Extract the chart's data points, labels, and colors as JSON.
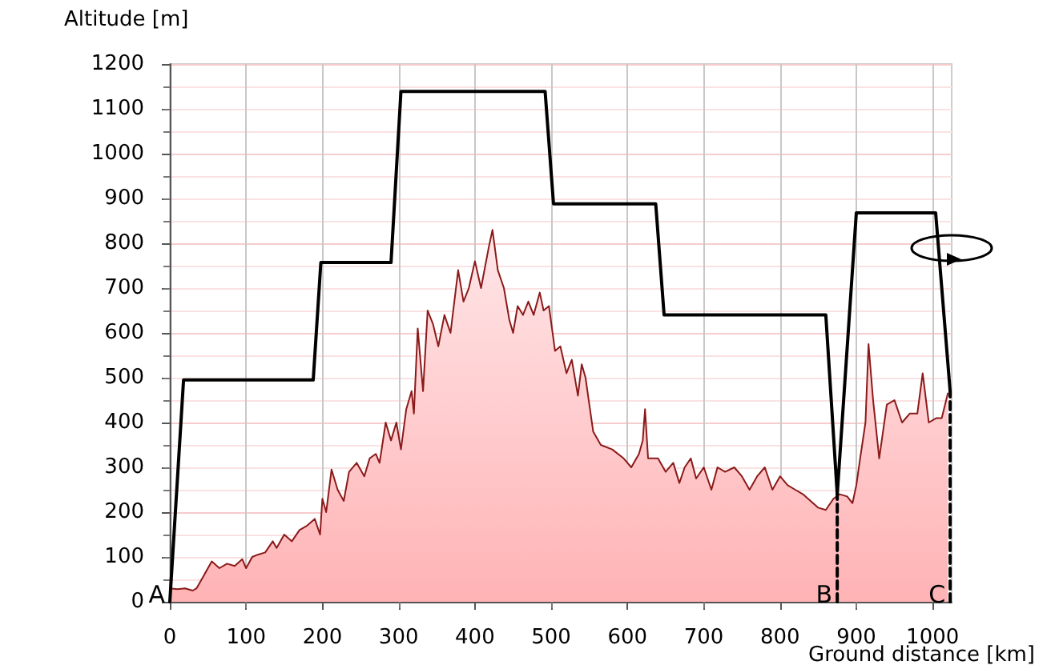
{
  "chart_data": {
    "type": "line",
    "xlabel": "Ground distance [km]",
    "ylabel": "Altitude [m]",
    "xlim": [
      0,
      1025
    ],
    "xticks": [
      0,
      100,
      200,
      300,
      400,
      500,
      600,
      700,
      800,
      900,
      1000
    ],
    "ylim": [
      0,
      1200
    ],
    "yticks": [
      0,
      100,
      200,
      300,
      400,
      500,
      600,
      700,
      800,
      900,
      1000,
      1100,
      1200
    ],
    "grid": true,
    "marker": "none",
    "series": [
      {
        "type": "area",
        "color": "#8b1a1a",
        "x": [
          0,
          10,
          20,
          30,
          35,
          45,
          55,
          65,
          75,
          85,
          95,
          100,
          108,
          115,
          125,
          135,
          140,
          150,
          160,
          170,
          180,
          190,
          197,
          200,
          205,
          212,
          220,
          228,
          235,
          245,
          255,
          262,
          270,
          275,
          283,
          290,
          297,
          303,
          310,
          317,
          320,
          325,
          332,
          338,
          345,
          352,
          360,
          368,
          378,
          385,
          392,
          400,
          408,
          418,
          423,
          430,
          438,
          445,
          450,
          456,
          463,
          470,
          477,
          485,
          490,
          497,
          505,
          512,
          520,
          527,
          535,
          540,
          545,
          550,
          555,
          565,
          580,
          595,
          605,
          615,
          620,
          623,
          627,
          640,
          650,
          660,
          668,
          675,
          683,
          690,
          700,
          710,
          718,
          728,
          740,
          750,
          760,
          770,
          780,
          790,
          800,
          810,
          820,
          830,
          840,
          850,
          860,
          870,
          878,
          888,
          895,
          900,
          905,
          912,
          916,
          922,
          930,
          940,
          950,
          960,
          970,
          980,
          987,
          995,
          1005,
          1012,
          1020
        ],
        "values": [
          30,
          28,
          30,
          25,
          30,
          60,
          90,
          75,
          85,
          80,
          95,
          75,
          100,
          105,
          110,
          135,
          120,
          150,
          135,
          160,
          170,
          185,
          150,
          230,
          200,
          295,
          250,
          225,
          290,
          310,
          280,
          320,
          330,
          310,
          400,
          360,
          400,
          340,
          430,
          470,
          420,
          610,
          470,
          650,
          620,
          570,
          640,
          600,
          740,
          670,
          700,
          760,
          700,
          790,
          830,
          740,
          700,
          630,
          600,
          660,
          640,
          670,
          640,
          690,
          650,
          660,
          560,
          570,
          510,
          540,
          460,
          530,
          500,
          440,
          380,
          350,
          340,
          320,
          300,
          330,
          360,
          430,
          320,
          320,
          290,
          310,
          265,
          300,
          320,
          275,
          300,
          250,
          300,
          290,
          300,
          280,
          250,
          280,
          300,
          250,
          280,
          260,
          250,
          240,
          225,
          210,
          205,
          230,
          240,
          235,
          220,
          260,
          320,
          400,
          575,
          450,
          320,
          440,
          450,
          400,
          420,
          420,
          510,
          400,
          410,
          410,
          465
        ]
      },
      {
        "color": "#000000",
        "x": [
          0,
          18,
          188,
          198,
          290,
          303,
          492,
          503,
          637,
          648,
          860,
          875,
          900,
          1004,
          1023
        ],
        "values": [
          0,
          495,
          495,
          757,
          757,
          1139,
          1139,
          888,
          888,
          640,
          640,
          240,
          868,
          868,
          470
        ]
      },
      {
        "color": "#000000",
        "line_style": "dashed",
        "x": [
          875,
          875
        ],
        "values": [
          0,
          240
        ]
      },
      {
        "color": "#000000",
        "line_style": "dashed",
        "x": [
          1023,
          1023
        ],
        "values": [
          0,
          470
        ]
      }
    ],
    "annotations": [
      {
        "text": "A",
        "x": 0,
        "y": 0
      },
      {
        "text": "B",
        "x": 875,
        "y": 0
      },
      {
        "text": "C",
        "x": 1023,
        "y": 0
      }
    ]
  }
}
